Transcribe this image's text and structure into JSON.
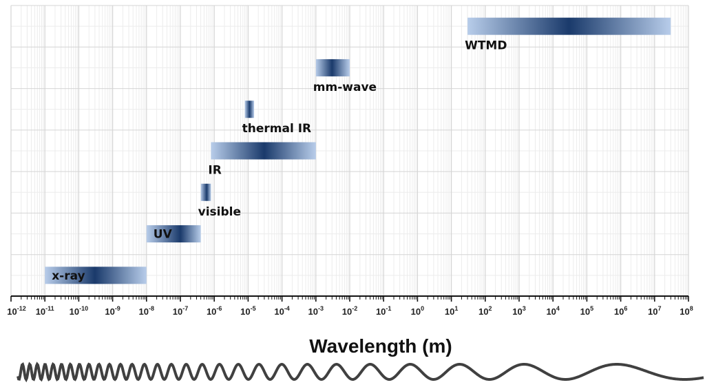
{
  "chart_data": {
    "type": "range-bar",
    "xscale": "log10",
    "xlim_exponent": [
      -12,
      8
    ],
    "grid": true,
    "xlabel": "Wavelength (m)",
    "tick_base": "10",
    "tick_exponents": [
      "-12",
      "-11",
      "-10",
      "-9",
      "-8",
      "-7",
      "-6",
      "-5",
      "-4",
      "-3",
      "-2",
      "-1",
      "0",
      "1",
      "2",
      "3",
      "4",
      "5",
      "6",
      "7",
      "8"
    ],
    "bands": [
      {
        "label": "x-ray",
        "from_m": 1e-11,
        "to_m": 1e-08,
        "peak_m": 3e-10,
        "label_position": "inside-left"
      },
      {
        "label": "UV",
        "from_m": 1e-08,
        "to_m": 4e-07,
        "peak_m": 1e-07,
        "label_position": "inside-left"
      },
      {
        "label": "visible",
        "from_m": 4e-07,
        "to_m": 8e-07,
        "peak_m": 6e-07,
        "label_position": "below"
      },
      {
        "label": "IR",
        "from_m": 8e-07,
        "to_m": 0.001,
        "peak_m": 3e-05,
        "label_position": "below"
      },
      {
        "label": "thermal IR",
        "from_m": 8e-06,
        "to_m": 1.5e-05,
        "peak_m": 1.1e-05,
        "label_position": "below"
      },
      {
        "label": "mm-wave",
        "from_m": 0.001,
        "to_m": 0.01,
        "peak_m": 0.003,
        "label_position": "below"
      },
      {
        "label": "WTMD",
        "from_m": 30,
        "to_m": 30000000.0,
        "peak_m": 30000.0,
        "label_position": "below"
      }
    ],
    "colors": {
      "band_dark": "#1a3a6b",
      "band_light": "#b8cdea",
      "grid_major": "#d4d4d4",
      "grid_minor": "#ececec",
      "axis": "#111111",
      "wave": "#404040"
    }
  }
}
